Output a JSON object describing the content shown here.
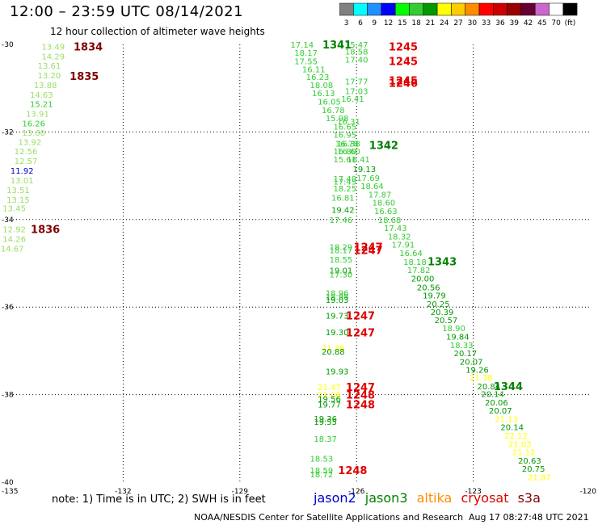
{
  "header": {
    "title": "12:00 – 23:59 UTC 08/14/2021",
    "subtitle": "12 hour collection of altimeter wave heights"
  },
  "colorbar": {
    "colors": [
      "#808080",
      "#00ffff",
      "#1e90ff",
      "#0000ff",
      "#00ff00",
      "#33cc33",
      "#009900",
      "#ffff00",
      "#ffcc00",
      "#ff8c00",
      "#ff0000",
      "#cc0000",
      "#990000",
      "#660033",
      "#cc66cc",
      "#ffffff",
      "#000000"
    ],
    "labels": [
      "3",
      "6",
      "9",
      "12",
      "15",
      "18",
      "21",
      "24",
      "27",
      "30",
      "33",
      "36",
      "39",
      "42",
      "45",
      "70",
      "(ft)"
    ]
  },
  "map": {
    "lat_labels": [
      {
        "lat": -30,
        "label": "-30"
      },
      {
        "lat": -32,
        "label": "-32"
      },
      {
        "lat": -34,
        "label": "-34"
      },
      {
        "lat": -36,
        "label": "-36"
      },
      {
        "lat": -38,
        "label": "-38"
      },
      {
        "lat": -40,
        "label": "-40"
      }
    ],
    "lon_labels": [
      {
        "lon": -135,
        "label": "-135"
      },
      {
        "lon": -132,
        "label": "-132"
      },
      {
        "lon": -129,
        "label": "-129"
      },
      {
        "lon": -126,
        "label": "-126"
      },
      {
        "lon": -123,
        "label": "-123"
      },
      {
        "lon": -120,
        "label": "-120"
      }
    ],
    "lon_range": [
      -135,
      -120
    ],
    "lat_range": [
      -40,
      -30
    ],
    "time_labels": [
      {
        "text": "1834",
        "lon": -132.9,
        "lat": -30.05,
        "color": "#800000"
      },
      {
        "text": "1835",
        "lon": -133.0,
        "lat": -30.72,
        "color": "#800000"
      },
      {
        "text": "1836",
        "lon": -134.0,
        "lat": -34.22,
        "color": "#800000"
      },
      {
        "text": "1341",
        "lon": -126.5,
        "lat": -30.0,
        "color": "#008000"
      },
      {
        "text": "1245",
        "lon": -124.8,
        "lat": -30.05,
        "color": "#e00000"
      },
      {
        "text": "1245",
        "lon": -124.8,
        "lat": -30.38,
        "color": "#e00000"
      },
      {
        "text": "1245",
        "lon": -124.8,
        "lat": -30.82,
        "color": "#e00000"
      },
      {
        "text": "1246",
        "lon": -124.8,
        "lat": -30.88,
        "color": "#e00000"
      },
      {
        "text": "1342",
        "lon": -125.3,
        "lat": -32.3,
        "color": "#008000"
      },
      {
        "text": "1247",
        "lon": -125.7,
        "lat": -34.62,
        "color": "#e00000"
      },
      {
        "text": "1247",
        "lon": -125.7,
        "lat": -34.7,
        "color": "#e00000"
      },
      {
        "text": "1343",
        "lon": -123.8,
        "lat": -34.95,
        "color": "#008000"
      },
      {
        "text": "1247",
        "lon": -125.9,
        "lat": -36.19,
        "color": "#e00000"
      },
      {
        "text": "1247",
        "lon": -125.9,
        "lat": -36.58,
        "color": "#e00000"
      },
      {
        "text": "1344",
        "lon": -122.1,
        "lat": -37.8,
        "color": "#008000"
      },
      {
        "text": "1247",
        "lon": -125.9,
        "lat": -37.82,
        "color": "#e00000"
      },
      {
        "text": "1248",
        "lon": -125.9,
        "lat": -38.0,
        "color": "#e00000"
      },
      {
        "text": "1248",
        "lon": -125.9,
        "lat": -38.22,
        "color": "#e00000"
      },
      {
        "text": "1248",
        "lon": -126.1,
        "lat": -39.72,
        "color": "#e00000"
      }
    ],
    "tracks": [
      {
        "name": "track-1834",
        "points": [
          {
            "v": "13.49",
            "lon": -133.8,
            "lat": -30.05,
            "c": "#99dd66"
          },
          {
            "v": "14.29",
            "lon": -133.8,
            "lat": -30.27,
            "c": "#99dd66"
          },
          {
            "v": "13.61",
            "lon": -133.9,
            "lat": -30.48,
            "c": "#99dd66"
          },
          {
            "v": "13.20",
            "lon": -133.9,
            "lat": -30.7,
            "c": "#99dd66"
          },
          {
            "v": "13.88",
            "lon": -134.0,
            "lat": -30.92,
            "c": "#99dd66"
          },
          {
            "v": "14.63",
            "lon": -134.1,
            "lat": -31.14,
            "c": "#99dd66"
          },
          {
            "v": "15.21",
            "lon": -134.1,
            "lat": -31.36,
            "c": "#33cc33"
          },
          {
            "v": "13.91",
            "lon": -134.2,
            "lat": -31.58,
            "c": "#99dd66"
          },
          {
            "v": "16.26",
            "lon": -134.3,
            "lat": -31.8,
            "c": "#33cc33"
          },
          {
            "v": "13.60",
            "lon": -134.3,
            "lat": -32.01,
            "c": "#99dd66"
          },
          {
            "v": "13.92",
            "lon": -134.4,
            "lat": -32.22,
            "c": "#99dd66"
          },
          {
            "v": "12.56",
            "lon": -134.5,
            "lat": -32.44,
            "c": "#99dd66"
          },
          {
            "v": "12.57",
            "lon": -134.5,
            "lat": -32.66,
            "c": "#99dd66"
          },
          {
            "v": "11.92",
            "lon": -134.6,
            "lat": -32.88,
            "c": "#0000cc"
          },
          {
            "v": "13.01",
            "lon": -134.6,
            "lat": -33.1,
            "c": "#99dd66"
          },
          {
            "v": "13.51",
            "lon": -134.7,
            "lat": -33.32,
            "c": "#99dd66"
          },
          {
            "v": "13.15",
            "lon": -134.7,
            "lat": -33.54,
            "c": "#99dd66"
          },
          {
            "v": "13.45",
            "lon": -134.8,
            "lat": -33.74,
            "c": "#99dd66"
          },
          {
            "v": "12.92",
            "lon": -134.8,
            "lat": -34.22,
            "c": "#99dd66"
          },
          {
            "v": "14.26",
            "lon": -134.8,
            "lat": -34.44,
            "c": "#99dd66"
          },
          {
            "v": "14.67",
            "lon": -134.85,
            "lat": -34.66,
            "c": "#99dd66"
          }
        ]
      },
      {
        "name": "track-jason3",
        "points": [
          {
            "v": "17.14",
            "lon": -127.4,
            "lat": -30.0,
            "c": "#33cc33"
          },
          {
            "v": "18.17",
            "lon": -127.3,
            "lat": -30.18,
            "c": "#33cc33"
          },
          {
            "v": "17.55",
            "lon": -127.3,
            "lat": -30.38,
            "c": "#33cc33"
          },
          {
            "v": "16.11",
            "lon": -127.1,
            "lat": -30.56,
            "c": "#33cc33"
          },
          {
            "v": "16.23",
            "lon": -127.0,
            "lat": -30.74,
            "c": "#33cc33"
          },
          {
            "v": "18.08",
            "lon": -126.9,
            "lat": -30.92,
            "c": "#33cc33"
          },
          {
            "v": "16.13",
            "lon": -126.85,
            "lat": -31.11,
            "c": "#33cc33"
          },
          {
            "v": "16.05",
            "lon": -126.7,
            "lat": -31.3,
            "c": "#33cc33"
          },
          {
            "v": "16.78",
            "lon": -126.6,
            "lat": -31.49,
            "c": "#33cc33"
          },
          {
            "v": "15.98",
            "lon": -126.5,
            "lat": -31.68,
            "c": "#33cc33"
          },
          {
            "v": "16.31",
            "lon": -126.2,
            "lat": -31.75,
            "c": "#33cc33"
          },
          {
            "v": "16.65",
            "lon": -126.3,
            "lat": -31.87,
            "c": "#33cc33"
          },
          {
            "v": "16.95",
            "lon": -126.3,
            "lat": -32.06,
            "c": "#33cc33"
          },
          {
            "v": "16.78",
            "lon": -126.25,
            "lat": -32.26,
            "c": "#33cc33"
          },
          {
            "v": "16.60",
            "lon": -126.2,
            "lat": -32.44,
            "c": "#33cc33"
          },
          {
            "v": "16.41",
            "lon": -125.95,
            "lat": -32.62,
            "c": "#33cc33"
          },
          {
            "v": "19.13",
            "lon": -125.8,
            "lat": -32.84,
            "c": "#009900"
          },
          {
            "v": "17.69",
            "lon": -125.7,
            "lat": -33.04,
            "c": "#33cc33"
          },
          {
            "v": "18.64",
            "lon": -125.6,
            "lat": -33.23,
            "c": "#33cc33"
          },
          {
            "v": "17.87",
            "lon": -125.4,
            "lat": -33.42,
            "c": "#33cc33"
          },
          {
            "v": "18.60",
            "lon": -125.3,
            "lat": -33.61,
            "c": "#33cc33"
          },
          {
            "v": "16.63",
            "lon": -125.25,
            "lat": -33.8,
            "c": "#33cc33"
          },
          {
            "v": "18.68",
            "lon": -125.15,
            "lat": -34.0,
            "c": "#33cc33"
          },
          {
            "v": "17.43",
            "lon": -125.0,
            "lat": -34.19,
            "c": "#33cc33"
          },
          {
            "v": "18.32",
            "lon": -124.9,
            "lat": -34.38,
            "c": "#33cc33"
          },
          {
            "v": "17.91",
            "lon": -124.8,
            "lat": -34.57,
            "c": "#33cc33"
          },
          {
            "v": "16.64",
            "lon": -124.6,
            "lat": -34.76,
            "c": "#33cc33"
          },
          {
            "v": "18.18",
            "lon": -124.5,
            "lat": -34.96,
            "c": "#33cc33"
          },
          {
            "v": "17.82",
            "lon": -124.4,
            "lat": -35.15,
            "c": "#33cc33"
          },
          {
            "v": "20.00",
            "lon": -124.3,
            "lat": -35.34,
            "c": "#009900"
          },
          {
            "v": "20.56",
            "lon": -124.15,
            "lat": -35.54,
            "c": "#009900"
          },
          {
            "v": "19.79",
            "lon": -124.0,
            "lat": -35.73,
            "c": "#009900"
          },
          {
            "v": "20.25",
            "lon": -123.9,
            "lat": -35.92,
            "c": "#009900"
          },
          {
            "v": "20.39",
            "lon": -123.8,
            "lat": -36.11,
            "c": "#009900"
          },
          {
            "v": "20.57",
            "lon": -123.7,
            "lat": -36.29,
            "c": "#009900"
          },
          {
            "v": "18.90",
            "lon": -123.5,
            "lat": -36.48,
            "c": "#33cc33"
          },
          {
            "v": "19.84",
            "lon": -123.4,
            "lat": -36.67,
            "c": "#009900"
          },
          {
            "v": "18.33",
            "lon": -123.3,
            "lat": -36.86,
            "c": "#33cc33"
          },
          {
            "v": "20.17",
            "lon": -123.2,
            "lat": -37.05,
            "c": "#009900"
          },
          {
            "v": "20.07",
            "lon": -123.05,
            "lat": -37.24,
            "c": "#009900"
          },
          {
            "v": "19.26",
            "lon": -122.9,
            "lat": -37.43,
            "c": "#009900"
          },
          {
            "v": "21.38",
            "lon": -122.8,
            "lat": -37.6,
            "c": "#ffff00"
          },
          {
            "v": "20.84",
            "lon": -122.6,
            "lat": -37.8,
            "c": "#009900"
          },
          {
            "v": "20.14",
            "lon": -122.5,
            "lat": -37.98,
            "c": "#009900"
          },
          {
            "v": "20.06",
            "lon": -122.4,
            "lat": -38.17,
            "c": "#009900"
          },
          {
            "v": "20.07",
            "lon": -122.3,
            "lat": -38.36,
            "c": "#009900"
          },
          {
            "v": "21.13",
            "lon": -122.15,
            "lat": -38.55,
            "c": "#ffff00"
          },
          {
            "v": "20.14",
            "lon": -122.0,
            "lat": -38.74,
            "c": "#009900"
          },
          {
            "v": "22.12",
            "lon": -121.9,
            "lat": -38.93,
            "c": "#ffff00"
          },
          {
            "v": "21.03",
            "lon": -121.8,
            "lat": -39.12,
            "c": "#ffff00"
          },
          {
            "v": "21.12",
            "lon": -121.7,
            "lat": -39.31,
            "c": "#ffff00"
          },
          {
            "v": "20.63",
            "lon": -121.55,
            "lat": -39.5,
            "c": "#009900"
          },
          {
            "v": "20.75",
            "lon": -121.45,
            "lat": -39.69,
            "c": "#009900"
          },
          {
            "v": "21.87",
            "lon": -121.3,
            "lat": -39.88,
            "c": "#ffff00"
          }
        ]
      },
      {
        "name": "track-cryosat",
        "points": [
          {
            "v": "15.47",
            "lon": -126.0,
            "lat": -30.0,
            "c": "#33cc33"
          },
          {
            "v": "18.58",
            "lon": -126.0,
            "lat": -30.16,
            "c": "#33cc33"
          },
          {
            "v": "17.40",
            "lon": -126.0,
            "lat": -30.34,
            "c": "#33cc33"
          },
          {
            "v": "17.77",
            "lon": -126.0,
            "lat": -30.84,
            "c": "#33cc33"
          },
          {
            "v": "17.03",
            "lon": -126.0,
            "lat": -31.06,
            "c": "#33cc33"
          },
          {
            "v": "16.41",
            "lon": -126.1,
            "lat": -31.24,
            "c": "#33cc33"
          },
          {
            "v": "16.38",
            "lon": -126.2,
            "lat": -32.26,
            "c": "#33cc33"
          },
          {
            "v": "16.80",
            "lon": -126.3,
            "lat": -32.44,
            "c": "#33cc33"
          },
          {
            "v": "15.61",
            "lon": -126.3,
            "lat": -32.62,
            "c": "#33cc33"
          },
          {
            "v": "17.49",
            "lon": -126.3,
            "lat": -33.06,
            "c": "#33cc33"
          },
          {
            "v": "17.45",
            "lon": -126.3,
            "lat": -33.13,
            "c": "#33cc33"
          },
          {
            "v": "18.25",
            "lon": -126.3,
            "lat": -33.28,
            "c": "#33cc33"
          },
          {
            "v": "16.81",
            "lon": -126.35,
            "lat": -33.5,
            "c": "#33cc33"
          },
          {
            "v": "19.42",
            "lon": -126.35,
            "lat": -33.77,
            "c": "#009900"
          },
          {
            "v": "17.46",
            "lon": -126.4,
            "lat": -34.0,
            "c": "#33cc33"
          },
          {
            "v": "18.29",
            "lon": -126.4,
            "lat": -34.62,
            "c": "#33cc33"
          },
          {
            "v": "18.17",
            "lon": -126.4,
            "lat": -34.7,
            "c": "#33cc33"
          },
          {
            "v": "18.55",
            "lon": -126.4,
            "lat": -34.91,
            "c": "#33cc33"
          },
          {
            "v": "19.01",
            "lon": -126.4,
            "lat": -35.16,
            "c": "#009900"
          },
          {
            "v": "17.30",
            "lon": -126.4,
            "lat": -35.25,
            "c": "#33cc33"
          },
          {
            "v": "18.96",
            "lon": -126.5,
            "lat": -35.67,
            "c": "#33cc33"
          },
          {
            "v": "18.98",
            "lon": -126.5,
            "lat": -35.76,
            "c": "#33cc33"
          },
          {
            "v": "19.03",
            "lon": -126.5,
            "lat": -35.83,
            "c": "#009900"
          },
          {
            "v": "19.73",
            "lon": -126.5,
            "lat": -36.19,
            "c": "#009900"
          },
          {
            "v": "19.30",
            "lon": -126.5,
            "lat": -36.57,
            "c": "#009900"
          },
          {
            "v": "21.36",
            "lon": -126.6,
            "lat": -36.93,
            "c": "#ffff00"
          },
          {
            "v": "20.88",
            "lon": -126.6,
            "lat": -37.01,
            "c": "#009900"
          },
          {
            "v": "19.93",
            "lon": -126.5,
            "lat": -37.46,
            "c": "#009900"
          },
          {
            "v": "21.47",
            "lon": -126.7,
            "lat": -37.82,
            "c": "#ffff00"
          },
          {
            "v": "21.06",
            "lon": -126.7,
            "lat": -38.0,
            "c": "#ffff00"
          },
          {
            "v": "19.56",
            "lon": -126.7,
            "lat": -38.09,
            "c": "#009900"
          },
          {
            "v": "19.77",
            "lon": -126.7,
            "lat": -38.22,
            "c": "#009900"
          },
          {
            "v": "19.36",
            "lon": -126.8,
            "lat": -38.54,
            "c": "#009900"
          },
          {
            "v": "19.55",
            "lon": -126.8,
            "lat": -38.62,
            "c": "#009900"
          },
          {
            "v": "18.37",
            "lon": -126.8,
            "lat": -39.0,
            "c": "#33cc33"
          },
          {
            "v": "18.53",
            "lon": -126.9,
            "lat": -39.46,
            "c": "#33cc33"
          },
          {
            "v": "18.59",
            "lon": -126.9,
            "lat": -39.72,
            "c": "#33cc33"
          },
          {
            "v": "18.72",
            "lon": -126.9,
            "lat": -39.82,
            "c": "#33cc33"
          }
        ]
      }
    ]
  },
  "footer": {
    "note": "note: 1) Time is in UTC; 2) SWH is in feet",
    "credit": "NOAA/NESDIS Center for Satellite Applications and Research",
    "timestamp": "Aug 17 08:27:48 UTC 2021",
    "legend": [
      {
        "label": "jason2",
        "color": "#0000cc"
      },
      {
        "label": "jason3",
        "color": "#008000"
      },
      {
        "label": "altika",
        "color": "#ff8c00"
      },
      {
        "label": "cryosat",
        "color": "#e00000"
      },
      {
        "label": "s3a",
        "color": "#800000"
      }
    ]
  }
}
